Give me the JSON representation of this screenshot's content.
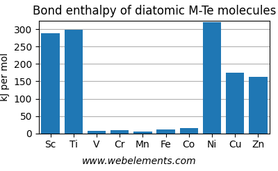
{
  "chart_data": {
    "type": "bar",
    "title": "Bond enthalpy of diatomic M-Te molecules",
    "y_label": "kJ per mol",
    "annotations": [
      "www.webelements.com"
    ],
    "categories": [
      "Sc",
      "Ti",
      "V",
      "Cr",
      "Mn",
      "Fe",
      "Co",
      "Ni",
      "Cu",
      "Zn"
    ],
    "values": [
      289,
      299,
      8,
      10,
      5,
      12,
      15,
      321,
      175,
      162
    ],
    "ylim": [
      0,
      325
    ],
    "yticks": [
      0,
      50,
      100,
      150,
      200,
      250,
      300
    ],
    "grid": true
  }
}
